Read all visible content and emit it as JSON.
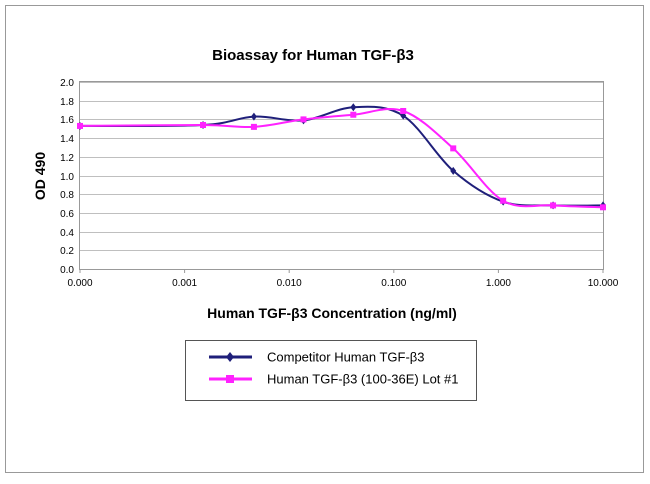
{
  "chart_data": {
    "type": "line",
    "title": "Bioassay for Human TGF-β3",
    "xlabel": "Human TGF-β3 Concentration (ng/ml)",
    "ylabel": "OD 490",
    "x_scale": "log",
    "x_ticks": [
      "0.000",
      "0.001",
      "0.010",
      "0.100",
      "1.000",
      "10.000"
    ],
    "y_ticks": [
      "0.0",
      "0.2",
      "0.4",
      "0.6",
      "0.8",
      "1.0",
      "1.2",
      "1.4",
      "1.6",
      "1.8",
      "2.0"
    ],
    "ylim": [
      0,
      2.0
    ],
    "grid": "horizontal",
    "legend_position": "bottom-center",
    "series": [
      {
        "name": "Competitor Human TGF-β3",
        "color": "#1f1f7a",
        "marker": "diamond",
        "points": [
          {
            "x": 0.0001,
            "y": 1.53
          },
          {
            "x": 0.0015,
            "y": 1.54
          },
          {
            "x": 0.0046,
            "y": 1.63
          },
          {
            "x": 0.0137,
            "y": 1.59
          },
          {
            "x": 0.041,
            "y": 1.73
          },
          {
            "x": 0.123,
            "y": 1.64
          },
          {
            "x": 0.37,
            "y": 1.05
          },
          {
            "x": 1.11,
            "y": 0.72
          },
          {
            "x": 3.33,
            "y": 0.68
          },
          {
            "x": 10.0,
            "y": 0.68
          }
        ]
      },
      {
        "name": "Human TGF-β3 (100-36E) Lot #1",
        "color": "#ff22ff",
        "marker": "square",
        "points": [
          {
            "x": 0.0001,
            "y": 1.53
          },
          {
            "x": 0.0015,
            "y": 1.54
          },
          {
            "x": 0.0046,
            "y": 1.52
          },
          {
            "x": 0.0137,
            "y": 1.6
          },
          {
            "x": 0.041,
            "y": 1.65
          },
          {
            "x": 0.123,
            "y": 1.69
          },
          {
            "x": 0.37,
            "y": 1.29
          },
          {
            "x": 1.11,
            "y": 0.73
          },
          {
            "x": 3.33,
            "y": 0.68
          },
          {
            "x": 10.0,
            "y": 0.66
          }
        ]
      }
    ]
  }
}
